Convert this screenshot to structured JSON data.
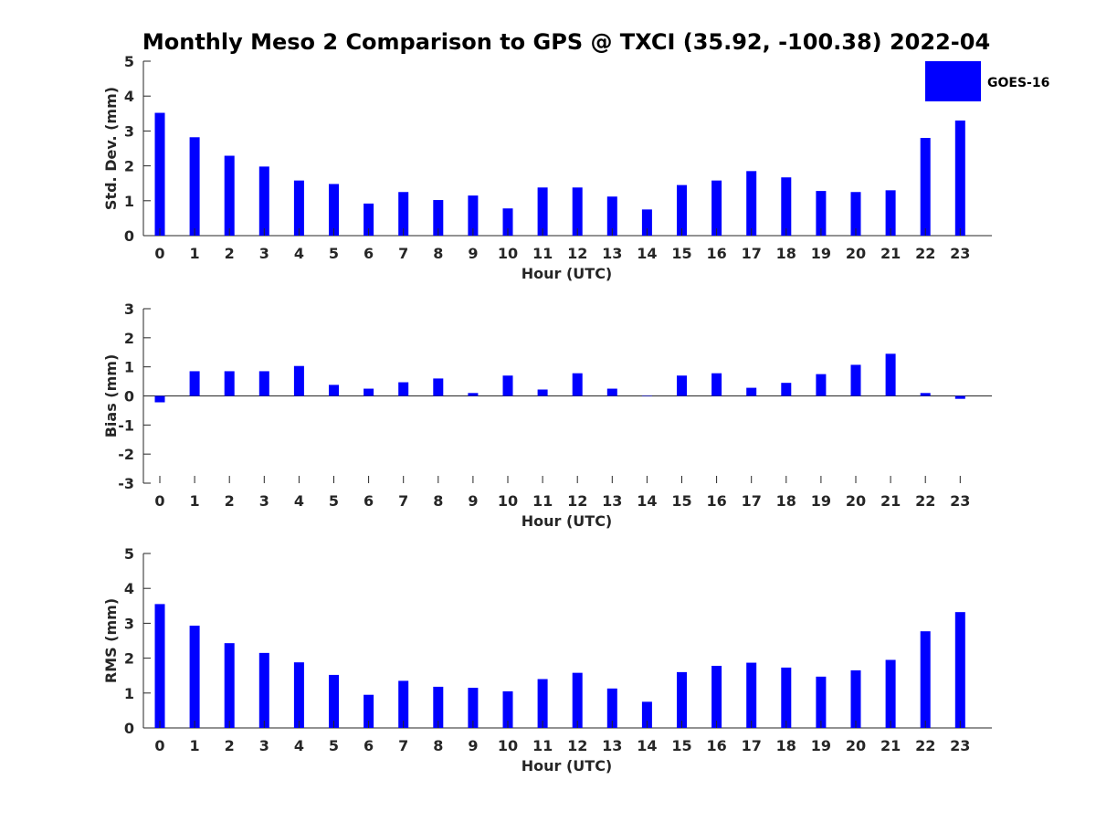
{
  "title": "Monthly Meso 2 Comparison to GPS @ TXCI (35.92, -100.38) 2022-04",
  "legend": {
    "label": "GOES-16",
    "placement": "top-right"
  },
  "colors": {
    "bar": "#0000ff",
    "axis": "#262626",
    "background": "#ffffff"
  },
  "chart_data": [
    {
      "type": "bar",
      "title": "Monthly Meso 2 Comparison to GPS @ TXCI (35.92, -100.38) 2022-04",
      "xlabel": "Hour (UTC)",
      "ylabel": "Std. Dev. (mm)",
      "ylim": [
        0,
        5
      ],
      "yticks": [
        0,
        1,
        2,
        3,
        4,
        5
      ],
      "grid": false,
      "categories": [
        "0",
        "1",
        "2",
        "3",
        "4",
        "5",
        "6",
        "7",
        "8",
        "9",
        "10",
        "11",
        "12",
        "13",
        "14",
        "15",
        "16",
        "17",
        "18",
        "19",
        "20",
        "21",
        "22",
        "23"
      ],
      "series": [
        {
          "name": "GOES-16",
          "values": [
            3.52,
            2.82,
            2.29,
            1.98,
            1.58,
            1.48,
            0.92,
            1.25,
            1.02,
            1.15,
            0.78,
            1.38,
            1.38,
            1.12,
            0.75,
            1.45,
            1.58,
            1.85,
            1.67,
            1.28,
            1.25,
            1.3,
            2.8,
            3.3
          ]
        }
      ]
    },
    {
      "type": "bar",
      "xlabel": "Hour (UTC)",
      "ylabel": "Bias (mm)",
      "ylim": [
        -3,
        3
      ],
      "yticks": [
        -3,
        -2,
        -1,
        0,
        1,
        2,
        3
      ],
      "grid": false,
      "categories": [
        "0",
        "1",
        "2",
        "3",
        "4",
        "5",
        "6",
        "7",
        "8",
        "9",
        "10",
        "11",
        "12",
        "13",
        "14",
        "15",
        "16",
        "17",
        "18",
        "19",
        "20",
        "21",
        "22",
        "23"
      ],
      "series": [
        {
          "name": "GOES-16",
          "values": [
            -0.22,
            0.85,
            0.85,
            0.85,
            1.03,
            0.38,
            0.25,
            0.47,
            0.6,
            0.1,
            0.7,
            0.22,
            0.78,
            0.25,
            0.0,
            0.7,
            0.78,
            0.28,
            0.45,
            0.75,
            1.07,
            1.45,
            0.1,
            -0.1
          ]
        }
      ]
    },
    {
      "type": "bar",
      "xlabel": "Hour (UTC)",
      "ylabel": "RMS (mm)",
      "ylim": [
        0,
        5
      ],
      "yticks": [
        0,
        1,
        2,
        3,
        4,
        5
      ],
      "grid": false,
      "categories": [
        "0",
        "1",
        "2",
        "3",
        "4",
        "5",
        "6",
        "7",
        "8",
        "9",
        "10",
        "11",
        "12",
        "13",
        "14",
        "15",
        "16",
        "17",
        "18",
        "19",
        "20",
        "21",
        "22",
        "23"
      ],
      "series": [
        {
          "name": "GOES-16",
          "values": [
            3.55,
            2.93,
            2.43,
            2.15,
            1.88,
            1.52,
            0.95,
            1.35,
            1.18,
            1.15,
            1.05,
            1.4,
            1.58,
            1.13,
            0.75,
            1.6,
            1.78,
            1.87,
            1.73,
            1.47,
            1.65,
            1.95,
            2.77,
            3.32
          ]
        }
      ]
    }
  ]
}
